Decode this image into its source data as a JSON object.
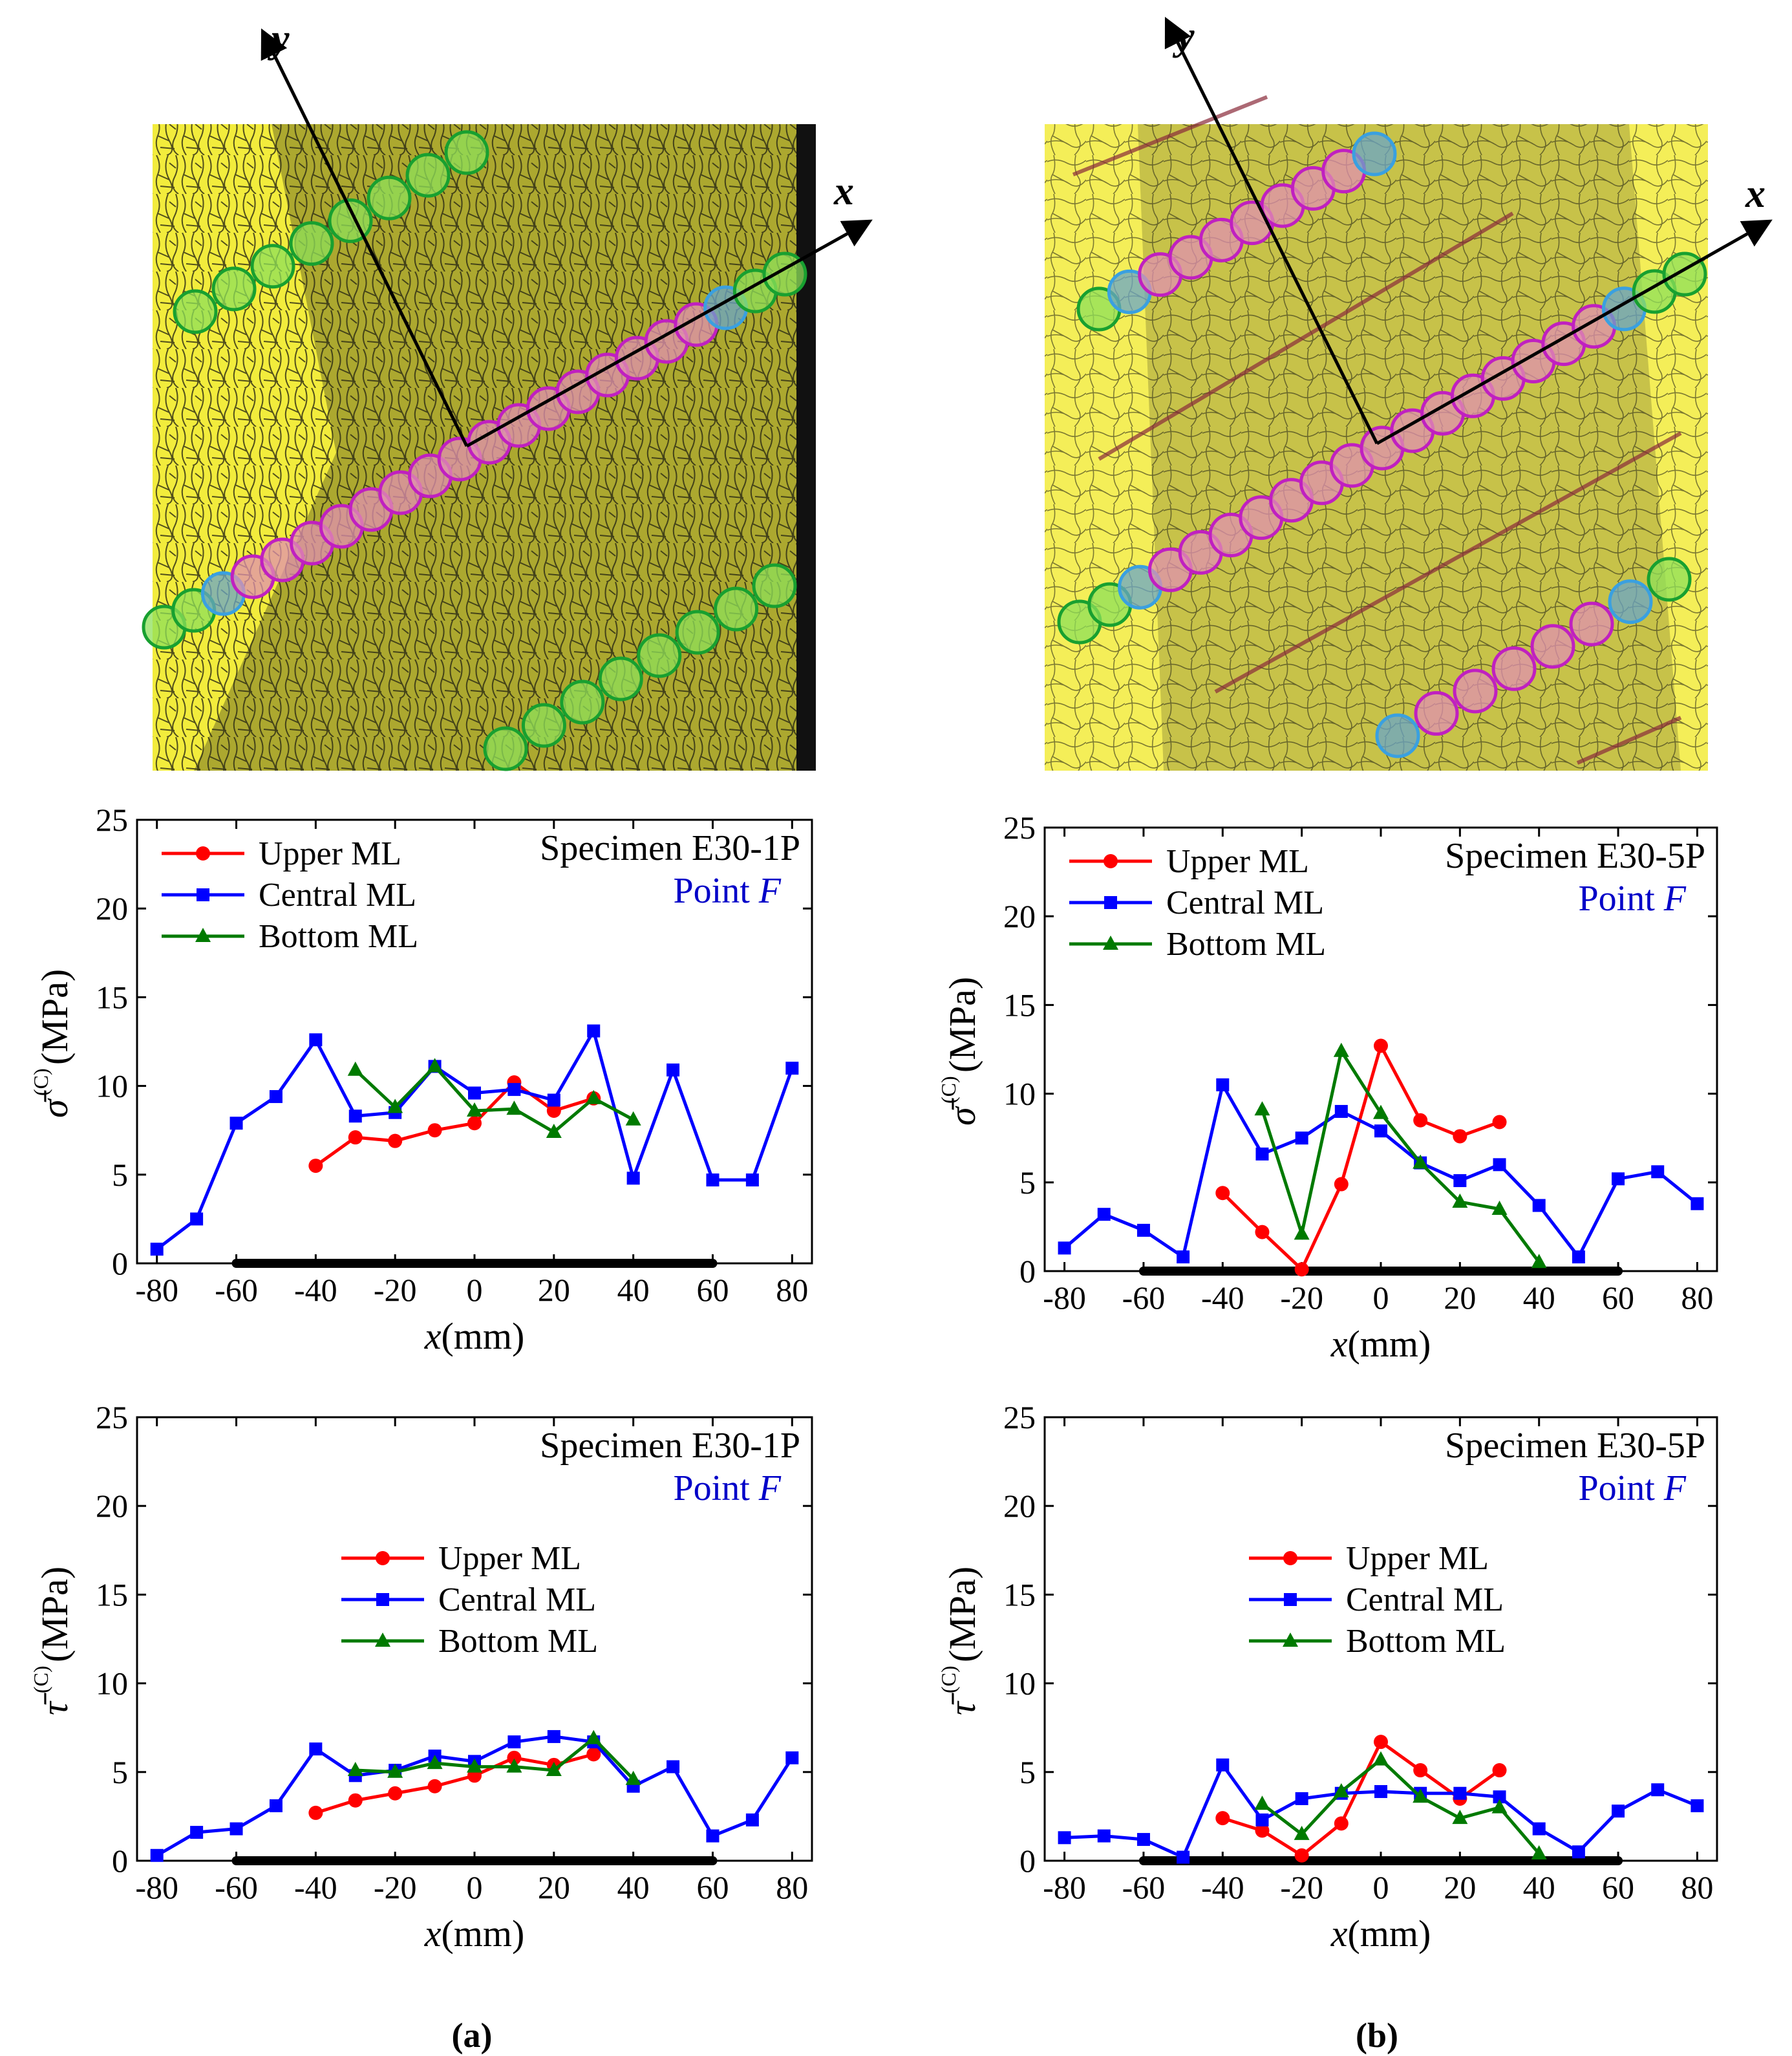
{
  "figure": {
    "panel_a_label": "(a)",
    "panel_b_label": "(b)"
  },
  "photos": [
    {
      "name": "specimen-photo-a",
      "x_axis_label": "x",
      "y_axis_label": "y"
    },
    {
      "name": "specimen-photo-b",
      "x_axis_label": "x",
      "y_axis_label": "y"
    }
  ],
  "chart_data": [
    {
      "type": "line",
      "name": "sigma-chart-a",
      "specimen": "Specimen E30-1P",
      "point_prefix": "Point ",
      "point_letter": "F",
      "ylabel_symbol": "σ̄",
      "ylabel_sup": "(C)",
      "ylabel_unit": "(MPa)",
      "xlabel_var": "x",
      "xlabel_unit": "(mm)",
      "xlim": [
        -85,
        85
      ],
      "ylim": [
        0,
        25
      ],
      "xticks": [
        -80,
        -60,
        -40,
        -20,
        0,
        20,
        40,
        60,
        80
      ],
      "yticks": [
        0,
        5,
        10,
        15,
        20,
        25
      ],
      "legend_position": "top-left",
      "bar_range": [
        -60,
        60
      ],
      "series": [
        {
          "name": "Upper ML",
          "color": "#ff0000",
          "marker": "circle",
          "x": [
            -40,
            -30,
            -20,
            -10,
            0,
            10,
            20,
            30
          ],
          "y": [
            5.5,
            7.1,
            6.9,
            7.5,
            7.9,
            10.2,
            8.6,
            9.3
          ]
        },
        {
          "name": "Central ML",
          "color": "#0000ff",
          "marker": "square",
          "x": [
            -80,
            -70,
            -60,
            -50,
            -40,
            -30,
            -20,
            -10,
            0,
            10,
            20,
            30,
            40,
            50,
            60,
            70,
            80
          ],
          "y": [
            0.8,
            2.5,
            7.9,
            9.4,
            12.6,
            8.3,
            8.5,
            11.1,
            9.6,
            9.8,
            9.2,
            13.1,
            4.8,
            10.9,
            4.7,
            4.7,
            11.0
          ]
        },
        {
          "name": "Bottom ML",
          "color": "#007a00",
          "marker": "triangle",
          "x": [
            -30,
            -20,
            -10,
            0,
            10,
            20,
            30,
            40
          ],
          "y": [
            10.9,
            8.8,
            11.1,
            8.6,
            8.7,
            7.4,
            9.3,
            8.1
          ]
        }
      ]
    },
    {
      "type": "line",
      "name": "sigma-chart-b",
      "specimen": "Specimen E30-5P",
      "point_prefix": "Point ",
      "point_letter": "F",
      "ylabel_symbol": "σ̄",
      "ylabel_sup": "(C)",
      "ylabel_unit": "(MPa)",
      "xlabel_var": "x",
      "xlabel_unit": "(mm)",
      "xlim": [
        -85,
        85
      ],
      "ylim": [
        0,
        25
      ],
      "xticks": [
        -80,
        -60,
        -40,
        -20,
        0,
        20,
        40,
        60,
        80
      ],
      "yticks": [
        0,
        5,
        10,
        15,
        20,
        25
      ],
      "legend_position": "top-left",
      "bar_range": [
        -60,
        60
      ],
      "series": [
        {
          "name": "Upper ML",
          "color": "#ff0000",
          "marker": "circle",
          "x": [
            -40,
            -30,
            -20,
            -10,
            0,
            10,
            20,
            30
          ],
          "y": [
            4.4,
            2.2,
            0.1,
            4.9,
            12.7,
            8.5,
            7.6,
            8.4
          ]
        },
        {
          "name": "Central ML",
          "color": "#0000ff",
          "marker": "square",
          "x": [
            -80,
            -70,
            -60,
            -50,
            -40,
            -30,
            -20,
            -10,
            0,
            10,
            20,
            30,
            40,
            50,
            60,
            70,
            80
          ],
          "y": [
            1.3,
            3.2,
            2.3,
            0.8,
            10.5,
            6.6,
            7.5,
            9.0,
            7.9,
            6.1,
            5.1,
            6.0,
            3.7,
            0.8,
            5.2,
            5.6,
            3.8
          ]
        },
        {
          "name": "Bottom ML",
          "color": "#007a00",
          "marker": "triangle",
          "x": [
            -30,
            -20,
            -10,
            0,
            10,
            20,
            30,
            40
          ],
          "y": [
            9.1,
            2.1,
            12.4,
            8.9,
            6.1,
            3.9,
            3.5,
            0.5
          ]
        }
      ]
    },
    {
      "type": "line",
      "name": "tau-chart-a",
      "specimen": "Specimen E30-1P",
      "point_prefix": "Point ",
      "point_letter": "F",
      "ylabel_symbol": "τ̄",
      "ylabel_sup": "(C)",
      "ylabel_unit": "(MPa)",
      "xlabel_var": "x",
      "xlabel_unit": "(mm)",
      "xlim": [
        -85,
        85
      ],
      "ylim": [
        0,
        25
      ],
      "xticks": [
        -80,
        -60,
        -40,
        -20,
        0,
        20,
        40,
        60,
        80
      ],
      "yticks": [
        0,
        5,
        10,
        15,
        20,
        25
      ],
      "legend_position": "center",
      "bar_range": [
        -60,
        60
      ],
      "series": [
        {
          "name": "Upper ML",
          "color": "#ff0000",
          "marker": "circle",
          "x": [
            -40,
            -30,
            -20,
            -10,
            0,
            10,
            20,
            30
          ],
          "y": [
            2.7,
            3.4,
            3.8,
            4.2,
            4.8,
            5.8,
            5.4,
            6.0
          ]
        },
        {
          "name": "Central ML",
          "color": "#0000ff",
          "marker": "square",
          "x": [
            -80,
            -70,
            -60,
            -50,
            -40,
            -30,
            -20,
            -10,
            0,
            10,
            20,
            30,
            40,
            50,
            60,
            70,
            80
          ],
          "y": [
            0.3,
            1.6,
            1.8,
            3.1,
            6.3,
            4.8,
            5.1,
            5.9,
            5.6,
            6.7,
            7.0,
            6.7,
            4.2,
            5.3,
            1.4,
            2.3,
            5.8
          ]
        },
        {
          "name": "Bottom ML",
          "color": "#007a00",
          "marker": "triangle",
          "x": [
            -30,
            -20,
            -10,
            0,
            10,
            20,
            30,
            40
          ],
          "y": [
            5.1,
            5.0,
            5.5,
            5.3,
            5.3,
            5.1,
            6.9,
            4.6
          ]
        }
      ]
    },
    {
      "type": "line",
      "name": "tau-chart-b",
      "specimen": "Specimen E30-5P",
      "point_prefix": "Point ",
      "point_letter": "F",
      "ylabel_symbol": "τ̄",
      "ylabel_sup": "(C)",
      "ylabel_unit": "(MPa)",
      "xlabel_var": "x",
      "xlabel_unit": "(mm)",
      "xlim": [
        -85,
        85
      ],
      "ylim": [
        0,
        25
      ],
      "xticks": [
        -80,
        -60,
        -40,
        -20,
        0,
        20,
        40,
        60,
        80
      ],
      "yticks": [
        0,
        5,
        10,
        15,
        20,
        25
      ],
      "legend_position": "center",
      "bar_range": [
        -60,
        60
      ],
      "series": [
        {
          "name": "Upper ML",
          "color": "#ff0000",
          "marker": "circle",
          "x": [
            -40,
            -30,
            -20,
            -10,
            0,
            10,
            20,
            30
          ],
          "y": [
            2.4,
            1.7,
            0.3,
            2.1,
            6.7,
            5.1,
            3.5,
            5.1
          ]
        },
        {
          "name": "Central ML",
          "color": "#0000ff",
          "marker": "square",
          "x": [
            -80,
            -70,
            -60,
            -50,
            -40,
            -30,
            -20,
            -10,
            0,
            10,
            20,
            30,
            40,
            50,
            60,
            70,
            80
          ],
          "y": [
            1.3,
            1.4,
            1.2,
            0.2,
            5.4,
            2.3,
            3.5,
            3.8,
            3.9,
            3.8,
            3.8,
            3.6,
            1.8,
            0.5,
            2.8,
            4.0,
            3.1
          ]
        },
        {
          "name": "Bottom ML",
          "color": "#007a00",
          "marker": "triangle",
          "x": [
            -30,
            -20,
            -10,
            0,
            10,
            20,
            30,
            40
          ],
          "y": [
            3.2,
            1.5,
            3.9,
            5.7,
            3.6,
            2.4,
            3.0,
            0.4
          ]
        }
      ]
    }
  ]
}
